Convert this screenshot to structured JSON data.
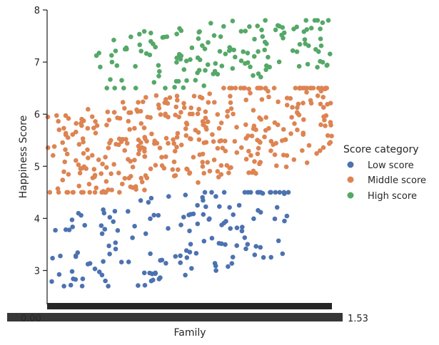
{
  "chart_data": {
    "type": "scatter",
    "xlabel": "Family",
    "ylabel": "Happiness Score",
    "ylim": [
      2.35,
      8.0
    ],
    "yticks": [
      3,
      4,
      5,
      6,
      7,
      8
    ],
    "x_tick_labels_note": "densely overlapping categorical tick labels (unreadable)",
    "x_tick_edge_labels": {
      "left": "0.00",
      "right": "1.53"
    },
    "legend": {
      "title": "Score category",
      "placement": "right"
    },
    "series": [
      {
        "name": "Low score",
        "color": "#4c72b0",
        "x_range": [
          0.0,
          0.85
        ],
        "y_range": [
          2.7,
          4.5
        ],
        "n": 155
      },
      {
        "name": "Middle score",
        "color": "#dd8452",
        "x_range": [
          0.0,
          1.0
        ],
        "y_range": [
          4.5,
          6.5
        ],
        "n": 390
      },
      {
        "name": "High score",
        "color": "#55a868",
        "x_range": [
          0.17,
          1.0
        ],
        "y_range": [
          6.5,
          7.8
        ],
        "n": 150
      }
    ]
  }
}
